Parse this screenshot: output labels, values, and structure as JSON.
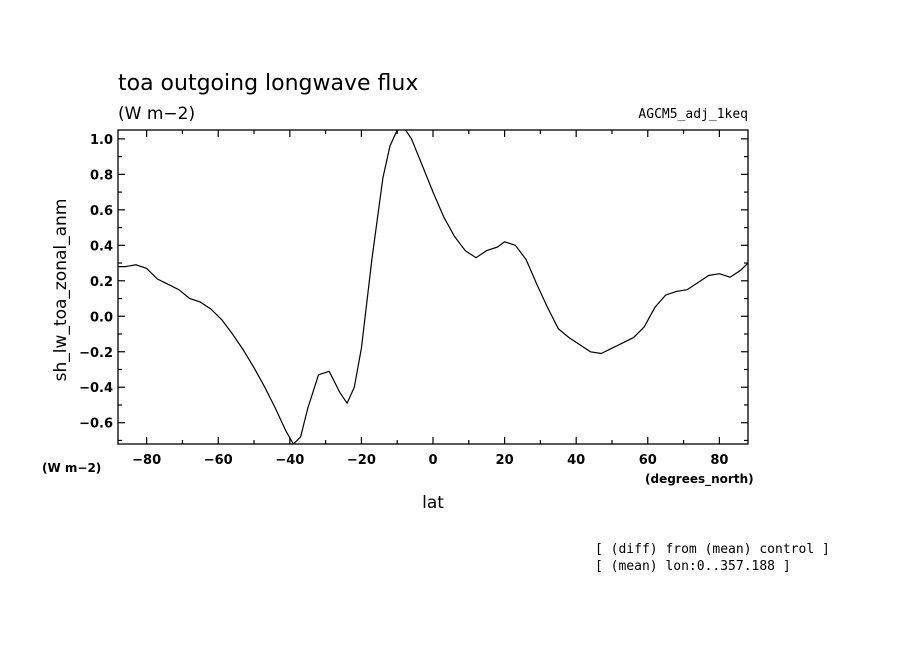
{
  "chart_data": {
    "type": "line",
    "title": "toa outgoing longwave flux",
    "subtitle": "(W m−2)",
    "experiment": "AGCM5_adj_1keq",
    "xlabel": "lat",
    "ylabel": "sh_lw_toa_zonal_anm",
    "x_units": "(degrees_north)",
    "y_units": "(W m−2)",
    "xlim": [
      -88,
      88
    ],
    "ylim": [
      -0.72,
      1.05
    ],
    "x_ticks": [
      -80,
      -60,
      -40,
      -20,
      0,
      20,
      40,
      60,
      80
    ],
    "x_tick_labels": [
      "−80",
      "−60",
      "−40",
      "−20",
      "0",
      "20",
      "40",
      "60",
      "80"
    ],
    "y_ticks": [
      -0.6,
      -0.4,
      -0.2,
      0.0,
      0.2,
      0.4,
      0.6,
      0.8,
      1.0
    ],
    "y_tick_labels": [
      "−0.6",
      "−0.4",
      "−0.2",
      "0.0",
      "0.2",
      "0.4",
      "0.6",
      "0.8",
      "1.0"
    ],
    "grid": false,
    "notes": [
      "[ (diff) from (mean) control ]",
      "[ (mean) lon:0..357.188 ]"
    ],
    "x": [
      -88,
      -86,
      -83,
      -80,
      -77,
      -74,
      -71,
      -68,
      -65,
      -62,
      -59,
      -56,
      -53,
      -50,
      -47,
      -44,
      -41,
      -39,
      -37,
      -35,
      -32,
      -29,
      -26,
      -24,
      -22,
      -20,
      -17,
      -14,
      -12,
      -10,
      -8,
      -6,
      -3,
      0,
      3,
      6,
      9,
      12,
      15,
      18,
      20,
      23,
      26,
      29,
      32,
      35,
      38,
      41,
      44,
      47,
      50,
      53,
      56,
      59,
      62,
      65,
      68,
      71,
      74,
      77,
      80,
      83,
      86,
      88
    ],
    "series": [
      {
        "values": [
          0.28,
          0.28,
          0.29,
          0.27,
          0.21,
          0.18,
          0.15,
          0.1,
          0.08,
          0.04,
          -0.02,
          -0.1,
          -0.19,
          -0.29,
          -0.4,
          -0.52,
          -0.65,
          -0.72,
          -0.68,
          -0.52,
          -0.33,
          -0.31,
          -0.43,
          -0.49,
          -0.4,
          -0.18,
          0.33,
          0.78,
          0.96,
          1.05,
          1.06,
          1.0,
          0.85,
          0.7,
          0.56,
          0.45,
          0.37,
          0.33,
          0.37,
          0.39,
          0.42,
          0.4,
          0.32,
          0.18,
          0.05,
          -0.07,
          -0.12,
          -0.16,
          -0.2,
          -0.21,
          -0.18,
          -0.15,
          -0.12,
          -0.06,
          0.05,
          0.12,
          0.14,
          0.15,
          0.19,
          0.23,
          0.24,
          0.22,
          0.26,
          0.3
        ]
      }
    ]
  }
}
